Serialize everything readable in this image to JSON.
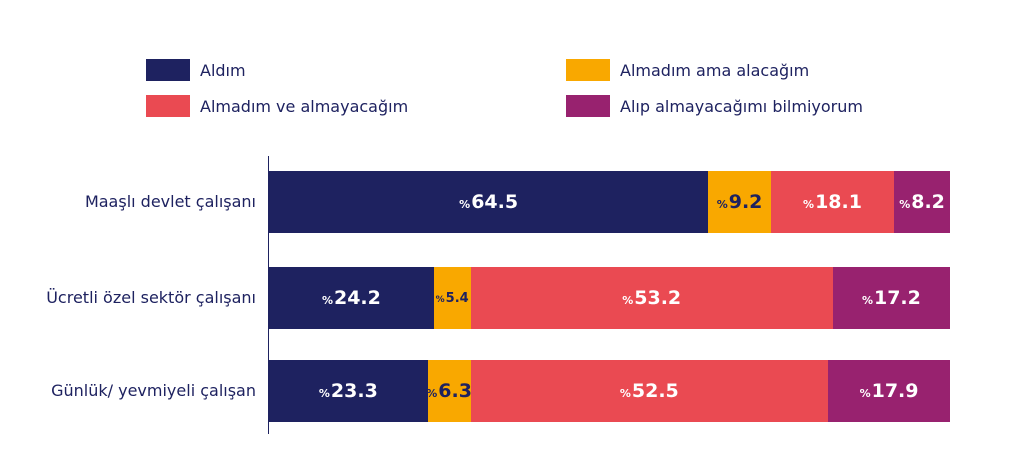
{
  "chart_data": {
    "type": "bar",
    "orientation": "horizontal",
    "stacked": true,
    "categories": [
      "Maaşlı devlet çalışanı",
      "Ücretli özel sektör çalışanı",
      "Günlük/ yevmiyeli çalışan"
    ],
    "series": [
      {
        "name": "Aldım",
        "color": "#1e2260",
        "label_color": "#ffffff",
        "values": [
          64.5,
          24.2,
          23.3
        ]
      },
      {
        "name": "Almadım ama alacağım",
        "color": "#f9a800",
        "label_color": "#1e2260",
        "values": [
          9.2,
          5.4,
          6.3
        ]
      },
      {
        "name": "Almadım ve almayacağım",
        "color": "#ea4a52",
        "label_color": "#ffffff",
        "values": [
          18.1,
          53.2,
          52.5
        ]
      },
      {
        "name": "Alıp almayacağımı bilmiyorum",
        "color": "#98226f",
        "label_color": "#ffffff",
        "values": [
          8.2,
          17.2,
          17.9
        ]
      }
    ],
    "value_labels": [
      [
        "64.5",
        "9.2",
        "18.1",
        "8.2"
      ],
      [
        "24.2",
        "5.4",
        "53.2",
        "17.2"
      ],
      [
        "23.3",
        "6.3",
        "52.5",
        "17.9"
      ]
    ],
    "percent_prefix": "%",
    "legend_order": [
      0,
      1,
      2,
      3
    ],
    "legend_position": "top",
    "title": "",
    "xlabel": "",
    "ylabel": "",
    "xlim": [
      0,
      100
    ],
    "grid": false
  }
}
